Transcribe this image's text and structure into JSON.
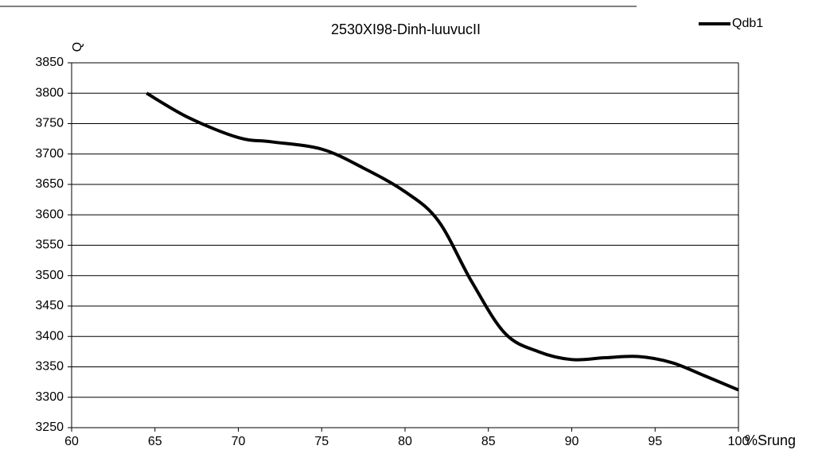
{
  "chart_data": {
    "type": "line",
    "title": "2530XI98-Dinh-luuvucII",
    "x_label": "%Srung",
    "y_label": "Q",
    "x": [
      64.5,
      67,
      70,
      72,
      75,
      77.5,
      80,
      82,
      84,
      86,
      88,
      90,
      92,
      94,
      96,
      98,
      100
    ],
    "series": [
      {
        "name": "Qdb1",
        "color": "#000000",
        "values": [
          3800,
          3760,
          3727,
          3720,
          3708,
          3677,
          3638,
          3590,
          3490,
          3405,
          3375,
          3362,
          3365,
          3367,
          3357,
          3335,
          3312
        ]
      }
    ],
    "xlim": [
      60,
      100
    ],
    "xticks": [
      60,
      65,
      70,
      75,
      80,
      85,
      90,
      95,
      100
    ],
    "ylim": [
      3250,
      3850
    ],
    "yticks": [
      3250,
      3300,
      3350,
      3400,
      3450,
      3500,
      3550,
      3600,
      3650,
      3700,
      3750,
      3800,
      3850
    ],
    "grid": true,
    "legend": "top-right"
  }
}
